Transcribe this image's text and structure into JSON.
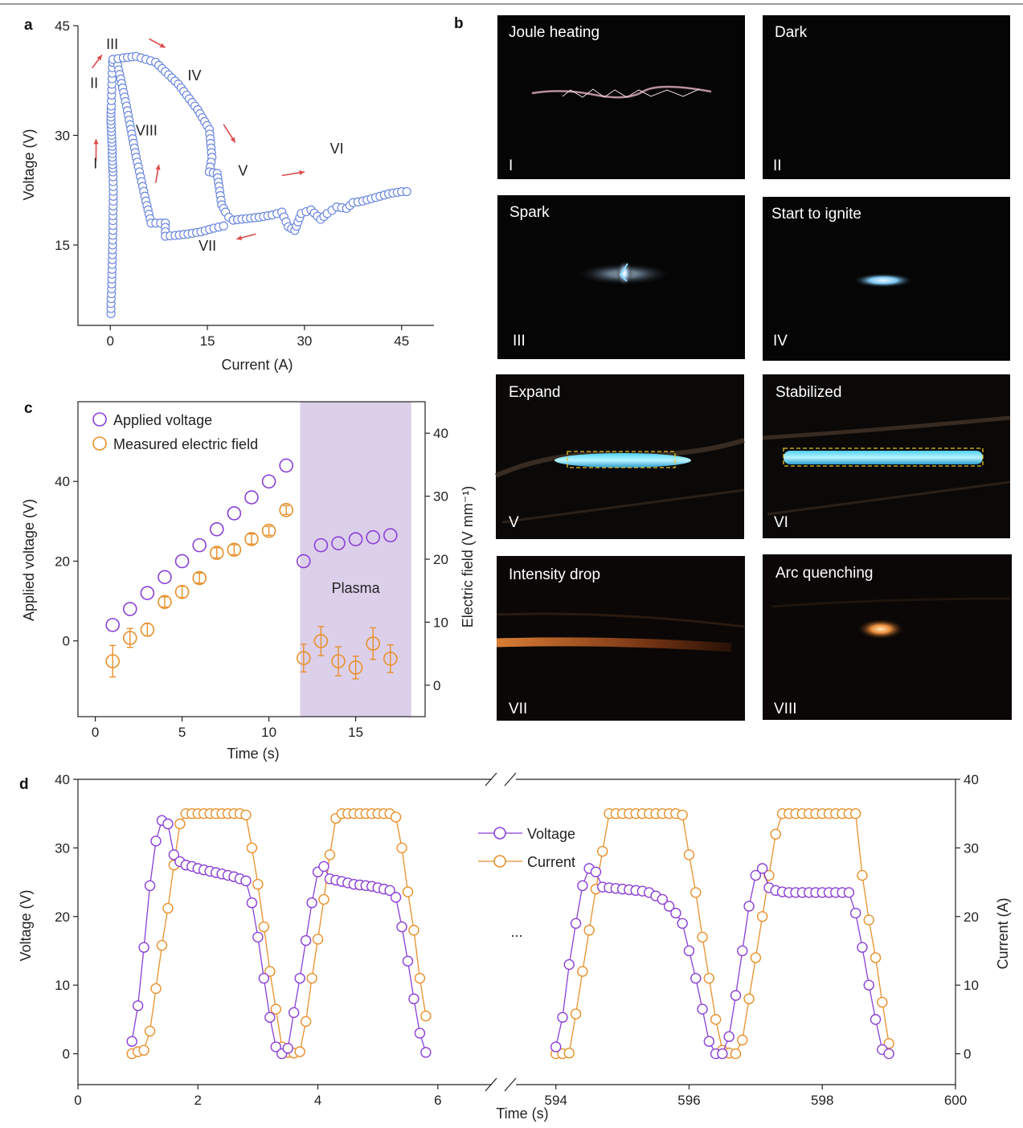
{
  "panels": {
    "a": "a",
    "b": "b",
    "c": "c",
    "d": "d"
  },
  "colors": {
    "blue": "#6b87e0",
    "purple": "#8a3fd8",
    "orange": "#e8902b",
    "arrow": "#e04a4a",
    "plasma": "#dccfea"
  },
  "chart_data": [
    {
      "id": "a",
      "type": "scatter",
      "xlabel": "Current (A)",
      "ylabel": "Voltage (V)",
      "xlim": [
        -5,
        50
      ],
      "ylim": [
        4,
        45
      ],
      "xticks": [
        0,
        15,
        30,
        45
      ],
      "yticks": [
        15,
        30,
        45
      ],
      "stage_labels": [
        {
          "t": "I",
          "x": -2.3,
          "y": 25.5
        },
        {
          "t": "II",
          "x": -2.5,
          "y": 36.5
        },
        {
          "t": "III",
          "x": 0.3,
          "y": 41.8
        },
        {
          "t": "IV",
          "x": 13,
          "y": 37.5
        },
        {
          "t": "V",
          "x": 20.5,
          "y": 24.5
        },
        {
          "t": "VI",
          "x": 35,
          "y": 27.5
        },
        {
          "t": "VII",
          "x": 15,
          "y": 14.2
        },
        {
          "t": "VIII",
          "x": 5.6,
          "y": 30
        }
      ],
      "arrows": [
        {
          "x1": -2.2,
          "y1": 26.5,
          "x2": -2.2,
          "y2": 29.5
        },
        {
          "x1": -2.8,
          "y1": 39.2,
          "x2": -1.3,
          "y2": 41
        },
        {
          "x1": 6,
          "y1": 43.2,
          "x2": 8.5,
          "y2": 42
        },
        {
          "x1": 17.5,
          "y1": 31.5,
          "x2": 19.3,
          "y2": 29
        },
        {
          "x1": 26.5,
          "y1": 24.5,
          "x2": 30,
          "y2": 25
        },
        {
          "x1": 7,
          "y1": 23.5,
          "x2": 7.5,
          "y2": 26
        },
        {
          "x1": 22.5,
          "y1": 16.5,
          "x2": 19.5,
          "y2": 15.8
        }
      ],
      "curves": [
        {
          "name": "I-II rise",
          "points": [
            [
              0.1,
              5.6
            ],
            [
              0.1,
              7
            ],
            [
              0.2,
              9
            ],
            [
              0.25,
              11
            ],
            [
              0.3,
              13
            ],
            [
              0.35,
              15
            ],
            [
              0.4,
              17
            ],
            [
              0.4,
              19
            ],
            [
              0.45,
              21
            ],
            [
              0.45,
              23
            ],
            [
              0.4,
              25
            ],
            [
              0.35,
              26
            ],
            [
              0.3,
              27
            ],
            [
              0.3,
              28
            ],
            [
              0.25,
              29
            ],
            [
              0.2,
              30
            ],
            [
              0.15,
              31
            ],
            [
              0.1,
              32
            ],
            [
              0.1,
              33
            ],
            [
              0.15,
              34
            ],
            [
              0.2,
              35.5
            ],
            [
              0.25,
              37
            ],
            [
              0.3,
              38.5
            ],
            [
              0.35,
              40
            ]
          ]
        },
        {
          "name": "II-VIII loop",
          "points": [
            [
              0.35,
              40
            ],
            [
              1,
              40.2
            ],
            [
              2.5,
              34
            ],
            [
              4,
              27
            ],
            [
              5.5,
              21
            ],
            [
              6.3,
              18
            ],
            [
              8.5,
              18
            ],
            [
              8.5,
              16.2
            ],
            [
              10,
              16.3
            ],
            [
              12,
              16.5
            ],
            [
              14,
              16.8
            ],
            [
              16,
              17.3
            ],
            [
              17.5,
              17.6
            ]
          ]
        },
        {
          "name": "III-IV-V",
          "points": [
            [
              0.4,
              40.4
            ],
            [
              2,
              40.6
            ],
            [
              4,
              40.8
            ],
            [
              7,
              40
            ],
            [
              10.5,
              37
            ],
            [
              13.5,
              33.5
            ],
            [
              15.3,
              30.8
            ],
            [
              15.7,
              27
            ],
            [
              15.3,
              25
            ],
            [
              16.5,
              24.8
            ],
            [
              16.8,
              23
            ],
            [
              17.2,
              20.5
            ],
            [
              17.8,
              19.5
            ],
            [
              18.3,
              18.8
            ],
            [
              19,
              18.4
            ]
          ]
        },
        {
          "name": "VI plateau",
          "points": [
            [
              19,
              18.4
            ],
            [
              21,
              18.6
            ],
            [
              23,
              18.8
            ],
            [
              25,
              19.1
            ],
            [
              26.5,
              19.5
            ],
            [
              27.5,
              17.5
            ],
            [
              28.5,
              17
            ],
            [
              29.5,
              19.3
            ],
            [
              31,
              19.8
            ],
            [
              32.5,
              18.5
            ],
            [
              33.5,
              19.3
            ],
            [
              35,
              20.2
            ],
            [
              36.5,
              20
            ],
            [
              37.5,
              20.8
            ],
            [
              39,
              21
            ],
            [
              41,
              21.5
            ],
            [
              43,
              22
            ],
            [
              45,
              22.3
            ],
            [
              45.8,
              22.3
            ]
          ]
        }
      ]
    },
    {
      "id": "c",
      "type": "scatter",
      "xlabel": "Time (s)",
      "ylabel": "Applied voltage (V)",
      "y2label": "Electric field (V mm⁻¹)",
      "xlim": [
        -1,
        19
      ],
      "ylim": [
        -19,
        60
      ],
      "y2lim": [
        -5,
        45
      ],
      "xticks": [
        0,
        5,
        10,
        15
      ],
      "yticks": [
        0,
        20,
        40
      ],
      "y2ticks": [
        0,
        10,
        20,
        30,
        40
      ],
      "legend": [
        "Applied voltage",
        "Measured electric field"
      ],
      "region": {
        "x0": 11.8,
        "x1": 18.2,
        "label": "Plasma"
      },
      "voltage": {
        "x": [
          1,
          2,
          3,
          4,
          5,
          6,
          7,
          8,
          9,
          10,
          11,
          12,
          13,
          14,
          15,
          16,
          17
        ],
        "y": [
          4,
          8,
          12,
          16,
          20,
          24,
          28,
          32,
          36,
          40,
          44,
          20,
          24,
          24.5,
          25.5,
          26,
          26.5
        ]
      },
      "field": {
        "x": [
          1,
          2,
          3,
          4,
          5,
          6,
          7,
          8,
          9,
          10,
          11,
          12,
          13,
          14,
          15,
          16,
          17
        ],
        "y": [
          3.8,
          7.5,
          8.8,
          13.2,
          14.8,
          17,
          21,
          21.5,
          23.2,
          24.5,
          27.8,
          4.3,
          7,
          3.8,
          2.8,
          6.6,
          4.2
        ],
        "err": [
          2.5,
          1.5,
          1.0,
          0.8,
          0.9,
          0.8,
          0.8,
          0.8,
          0.8,
          0.7,
          0.7,
          2.2,
          2.3,
          2.3,
          1.8,
          2.5,
          2.2
        ]
      }
    },
    {
      "id": "d",
      "type": "line",
      "xlabel": "Time (s)",
      "ylabel": "Voltage (V)",
      "y2label": "Current (A)",
      "ylim": [
        -4.5,
        40
      ],
      "yticks": [
        0,
        10,
        20,
        30,
        40
      ],
      "xticks_left": [
        0,
        2,
        4,
        6
      ],
      "xticks_right": [
        594,
        596,
        598,
        600
      ],
      "xlim_left": [
        0,
        6.9
      ],
      "xlim_right": [
        593.4,
        600
      ],
      "legend": [
        "Voltage",
        "Current"
      ],
      "ellipsis": "...",
      "voltage_left": {
        "x": [
          0.9,
          1.0,
          1.1,
          1.2,
          1.3,
          1.4,
          1.5,
          1.6,
          1.7,
          1.8,
          1.9,
          2.0,
          2.1,
          2.2,
          2.3,
          2.4,
          2.5,
          2.6,
          2.7,
          2.8,
          2.9,
          3.0,
          3.1,
          3.2,
          3.3,
          3.4,
          3.5,
          3.6,
          3.7,
          3.8,
          3.9,
          4.0,
          4.1,
          4.2,
          4.3,
          4.4,
          4.5,
          4.6,
          4.7,
          4.8,
          4.9,
          5.0,
          5.1,
          5.2,
          5.3,
          5.4,
          5.5,
          5.6,
          5.7,
          5.8
        ],
        "y": [
          1.8,
          7,
          15.5,
          24.5,
          31,
          34,
          33.5,
          29,
          28,
          27.5,
          27.3,
          27,
          26.8,
          26.6,
          26.4,
          26.2,
          26,
          25.8,
          25.5,
          25.2,
          22,
          17,
          11,
          5.3,
          1,
          0,
          0.8,
          6,
          11,
          16.5,
          22,
          26.5,
          27.3,
          25.5,
          25.3,
          25.1,
          24.9,
          24.7,
          24.6,
          24.5,
          24.4,
          24.2,
          24,
          23.8,
          22.8,
          18.5,
          13.5,
          8,
          3,
          0.2
        ]
      },
      "current_left": {
        "x": [
          0.9,
          1.0,
          1.1,
          1.2,
          1.3,
          1.4,
          1.5,
          1.6,
          1.7,
          1.8,
          1.9,
          2.0,
          2.1,
          2.2,
          2.3,
          2.4,
          2.5,
          2.6,
          2.7,
          2.8,
          2.9,
          3.0,
          3.1,
          3.2,
          3.3,
          3.4,
          3.5,
          3.6,
          3.7,
          3.8,
          3.9,
          4.0,
          4.1,
          4.2,
          4.3,
          4.4,
          4.5,
          4.6,
          4.7,
          4.8,
          4.9,
          5.0,
          5.1,
          5.2,
          5.3,
          5.4,
          5.5,
          5.6,
          5.7,
          5.8
        ],
        "y": [
          0,
          0.3,
          0.5,
          3.3,
          9.5,
          15.8,
          21.2,
          27.5,
          33.5,
          35,
          35,
          35,
          35,
          35,
          35,
          35,
          35,
          35,
          35,
          34.8,
          30,
          24.7,
          18.5,
          12,
          6.5,
          1,
          0.2,
          0.1,
          0.3,
          4.7,
          11,
          16.7,
          22.5,
          29,
          34.3,
          35,
          35,
          35,
          35,
          35,
          35,
          35,
          35,
          35,
          34.5,
          30,
          23.6,
          18,
          11,
          5.5
        ]
      },
      "voltage_right": {
        "x": [
          594.0,
          594.1,
          594.2,
          594.3,
          594.4,
          594.5,
          594.6,
          594.7,
          594.8,
          594.9,
          595.0,
          595.1,
          595.2,
          595.3,
          595.4,
          595.5,
          595.6,
          595.7,
          595.8,
          595.9,
          596.0,
          596.1,
          596.2,
          596.3,
          596.4,
          596.5,
          596.6,
          596.7,
          596.8,
          596.9,
          597.0,
          597.1,
          597.2,
          597.3,
          597.4,
          597.5,
          597.6,
          597.7,
          597.8,
          597.9,
          598.0,
          598.1,
          598.2,
          598.3,
          598.4,
          598.5,
          598.6,
          598.7,
          598.8,
          598.9,
          599.0
        ],
        "y": [
          1,
          5.3,
          13,
          19,
          24.5,
          27,
          26.5,
          24.3,
          24.2,
          24.1,
          24,
          23.9,
          23.8,
          23.7,
          23.5,
          23,
          22.5,
          21.5,
          20.5,
          19,
          15,
          11,
          6.5,
          1.8,
          0,
          0,
          2.5,
          8.5,
          15,
          21.5,
          26,
          27,
          24.2,
          23.8,
          23.6,
          23.5,
          23.5,
          23.5,
          23.5,
          23.5,
          23.5,
          23.5,
          23.5,
          23.5,
          23.5,
          20.5,
          15.5,
          10,
          5,
          0.6,
          0
        ]
      },
      "current_right": {
        "x": [
          594.0,
          594.1,
          594.2,
          594.3,
          594.4,
          594.5,
          594.6,
          594.7,
          594.8,
          594.9,
          595.0,
          595.1,
          595.2,
          595.3,
          595.4,
          595.5,
          595.6,
          595.7,
          595.8,
          595.9,
          596.0,
          596.1,
          596.2,
          596.3,
          596.4,
          596.5,
          596.6,
          596.7,
          596.8,
          596.9,
          597.0,
          597.1,
          597.2,
          597.3,
          597.4,
          597.5,
          597.6,
          597.7,
          597.8,
          597.9,
          598.0,
          598.1,
          598.2,
          598.3,
          598.4,
          598.5,
          598.6,
          598.7,
          598.8,
          598.9,
          599.0
        ],
        "y": [
          0,
          0,
          0.1,
          5.8,
          12,
          18,
          24,
          29.5,
          35,
          35,
          35,
          35,
          35,
          35,
          35,
          35,
          35,
          35,
          35,
          34.8,
          29,
          23.5,
          17,
          11,
          5,
          0.5,
          0.1,
          0,
          2,
          8,
          14,
          20,
          26,
          32,
          35,
          35,
          35,
          35,
          35,
          35,
          35,
          35,
          35,
          35,
          35,
          35,
          26,
          19.5,
          14,
          7.5,
          1.5
        ]
      }
    }
  ],
  "photos": [
    {
      "title": "Joule heating",
      "roman": "I"
    },
    {
      "title": "Dark",
      "roman": "II"
    },
    {
      "title": "Spark",
      "roman": "III"
    },
    {
      "title": "Start to ignite",
      "roman": "IV"
    },
    {
      "title": "Expand",
      "roman": "V"
    },
    {
      "title": "Stabilized",
      "roman": "VI"
    },
    {
      "title": "Intensity drop",
      "roman": "VII"
    },
    {
      "title": "Arc quenching",
      "roman": "VIII"
    }
  ]
}
